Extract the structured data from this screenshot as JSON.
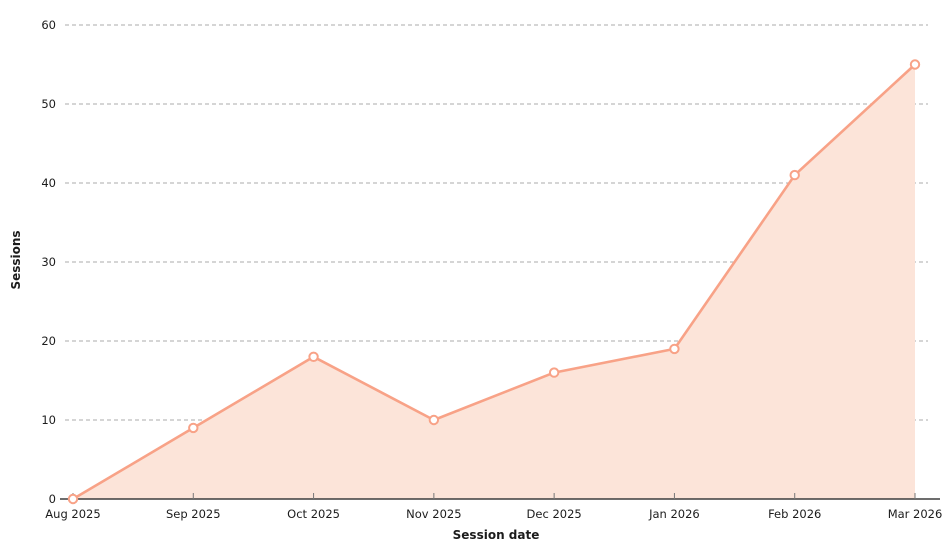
{
  "chart_data": {
    "type": "area",
    "categories": [
      "Aug 2025",
      "Sep 2025",
      "Oct 2025",
      "Nov 2025",
      "Dec 2025",
      "Jan 2026",
      "Feb 2026",
      "Mar 2026"
    ],
    "values": [
      0,
      9,
      18,
      10,
      16,
      19,
      41,
      55
    ],
    "title": "",
    "xlabel": "Session date",
    "ylabel": "Sessions",
    "ylim": [
      0,
      60
    ],
    "yticks": [
      0,
      10,
      20,
      30,
      40,
      50,
      60
    ],
    "grid": "horizontal-dashed",
    "legend": "none",
    "marker": "hollow-circle",
    "colors": {
      "line": "#f8a287",
      "fill": "#fce4d9",
      "marker_fill": "#ffffff",
      "grid": "#ababab",
      "axis": "#3d3d3d",
      "tick": "#777777",
      "text": "#1c1c1c"
    }
  }
}
